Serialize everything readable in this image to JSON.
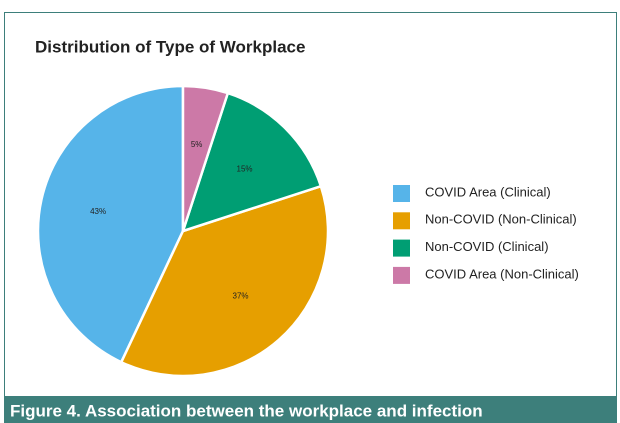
{
  "chart_data": {
    "type": "pie",
    "title": "Distribution of Type of Workplace",
    "categories": [
      "COVID Area (Clinical)",
      "Non-COVID (Non-Clinical)",
      "Non-COVID (Clinical)",
      "COVID Area (Non-Clinical)"
    ],
    "values": [
      43,
      37,
      15,
      5
    ],
    "value_labels": [
      "43%",
      "37%",
      "15%",
      "5%"
    ],
    "colors": [
      "#56b4e9",
      "#e69f00",
      "#009e73",
      "#cc79a7"
    ],
    "direction": "counterclockwise",
    "legend": "right"
  },
  "caption": "Figure 4. Association between the workplace and infection"
}
